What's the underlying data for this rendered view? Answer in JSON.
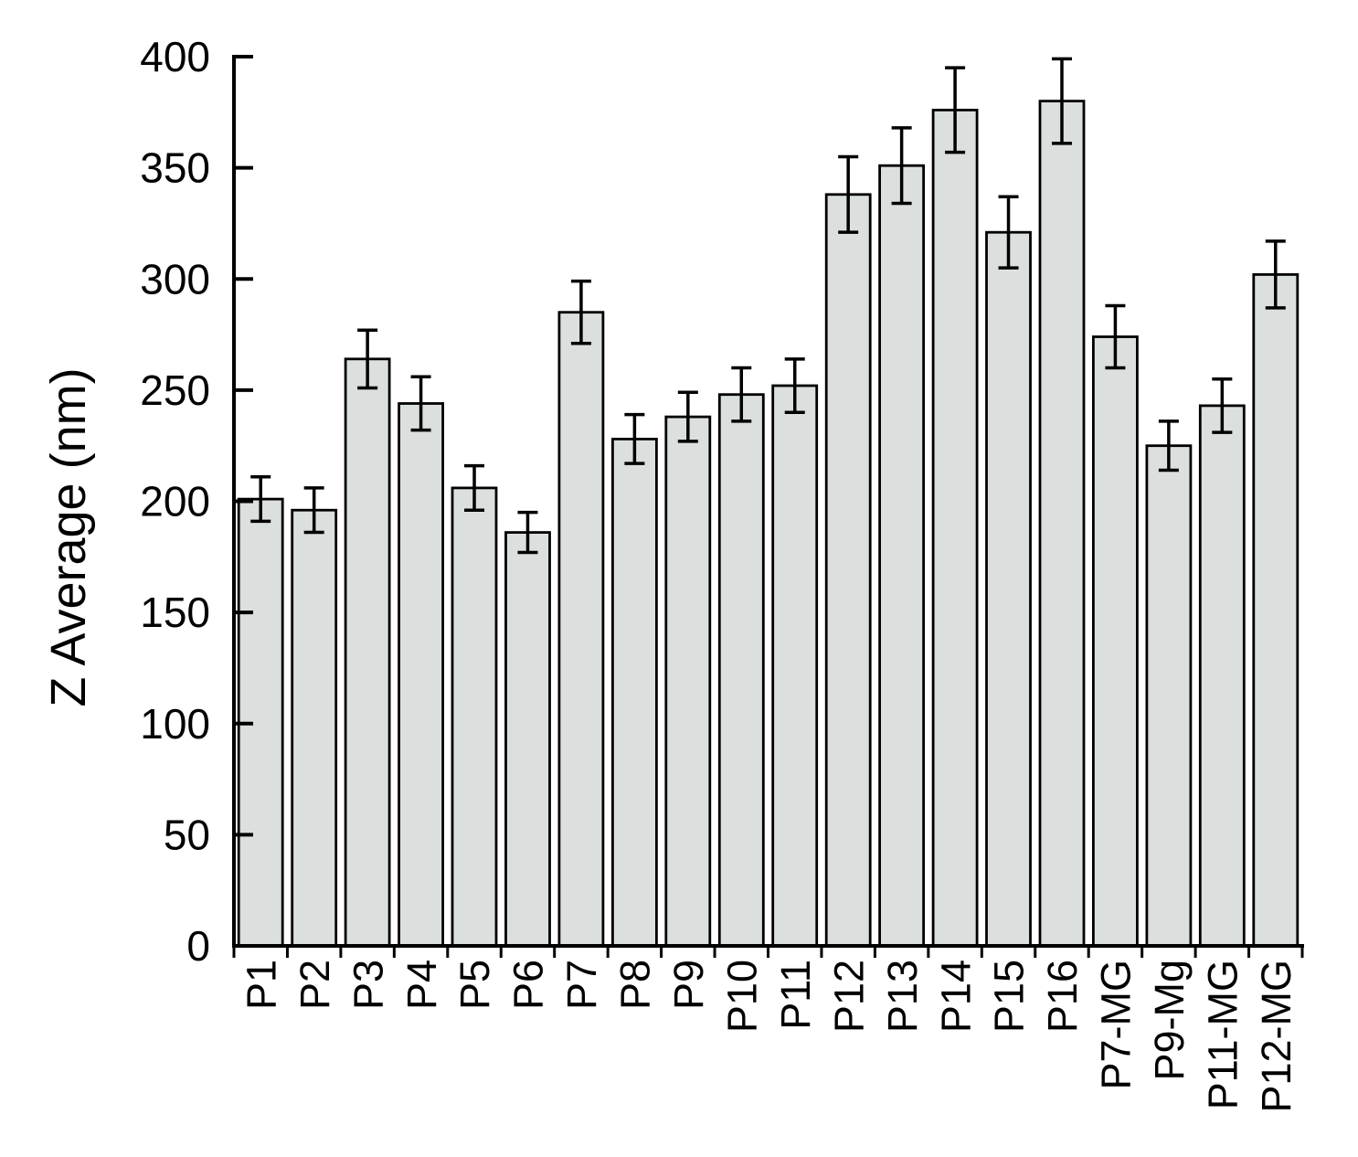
{
  "chart_data": {
    "type": "bar",
    "title": "",
    "xlabel": "",
    "ylabel": "Z Average (nm)",
    "categories": [
      "P1",
      "P2",
      "P3",
      "P4",
      "P5",
      "P6",
      "P7",
      "P8",
      "P9",
      "P10",
      "P11",
      "P12",
      "P13",
      "P14",
      "P15",
      "P16",
      "P7-MG",
      "P9-Mg",
      "P11-MG",
      "P12-MG"
    ],
    "values": [
      201,
      196,
      264,
      244,
      206,
      186,
      285,
      228,
      238,
      248,
      252,
      338,
      351,
      376,
      321,
      380,
      274,
      225,
      243,
      302
    ],
    "errors": [
      10,
      10,
      13,
      12,
      10,
      9,
      14,
      11,
      11,
      12,
      12,
      17,
      17,
      19,
      16,
      19,
      14,
      11,
      12,
      15
    ],
    "ylim": [
      0,
      400
    ],
    "yticks": [
      0,
      50,
      100,
      150,
      200,
      250,
      300,
      350,
      400
    ],
    "grid": false,
    "legend": null,
    "error_bar_style": "plus-minus-caps",
    "x_label_rotation_deg": -90
  },
  "chart_style": {
    "bar_fill": "#dbdfde",
    "bar_stroke": "#000000",
    "axis_color": "#000000",
    "text_color": "#000000",
    "background": "#ffffff"
  }
}
